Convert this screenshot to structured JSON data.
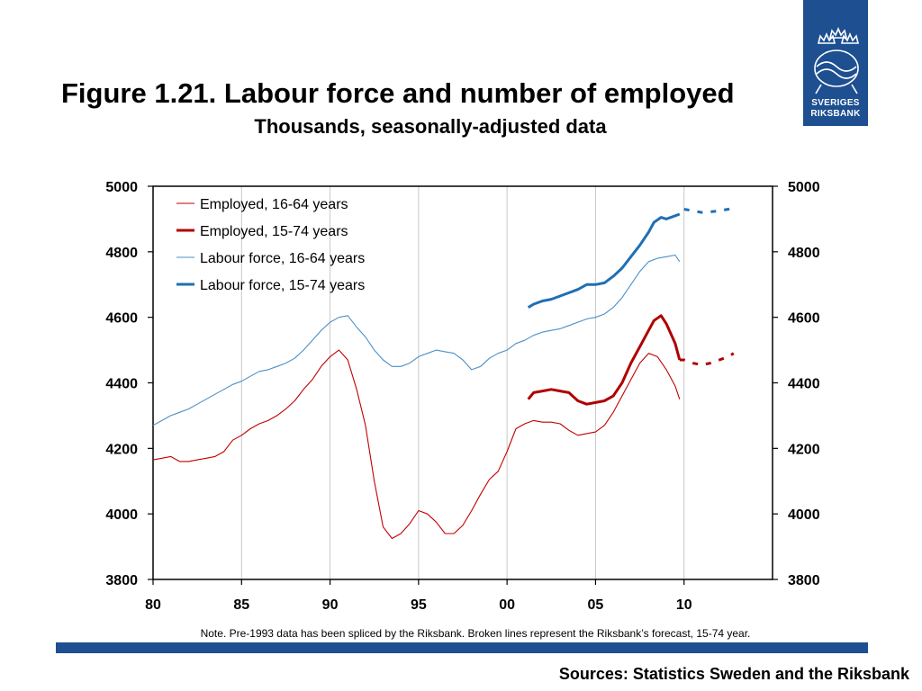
{
  "header": {
    "title": "Figure 1.21. Labour force and number of employed",
    "subtitle": "Thousands, seasonally-adjusted data"
  },
  "logo": {
    "line1": "SVERIGES",
    "line2": "RIKSBANK",
    "icon": "crown-crest-icon",
    "color": "#1d4f91"
  },
  "note": "Note. Pre-1993 data has been spliced by the Riksbank. Broken lines represent the Riksbank’s forecast, 15-74 year.",
  "footer": {
    "sources": "Sources: Statistics Sweden and the Riksbank",
    "bar_color": "#1d4f91"
  },
  "chart_data": {
    "type": "line",
    "title": "Figure 1.21. Labour force and number of employed",
    "subtitle": "Thousands, seasonally-adjusted data",
    "xlim": [
      1980,
      2015
    ],
    "ylim": [
      3800,
      5000
    ],
    "x_ticks": [
      1980,
      1985,
      1990,
      1995,
      2000,
      2005,
      2010
    ],
    "x_tick_labels": [
      "80",
      "85",
      "90",
      "95",
      "00",
      "05",
      "10"
    ],
    "y_ticks": [
      3800,
      4000,
      4200,
      4400,
      4600,
      4800,
      5000
    ],
    "y_tick_labels": [
      "3800",
      "4000",
      "4200",
      "4400",
      "4600",
      "4800",
      "5000"
    ],
    "y_axis_both_sides": true,
    "grid": "vertical",
    "legend_position": "top-left",
    "series": [
      {
        "name": "Employed, 16-64 years",
        "color": "#c00000",
        "width": "thin",
        "style": "solid",
        "x": [
          1980,
          1980.5,
          1981,
          1981.5,
          1982,
          1982.5,
          1983,
          1983.5,
          1984,
          1984.5,
          1985,
          1985.5,
          1986,
          1986.5,
          1987,
          1987.5,
          1988,
          1988.5,
          1989,
          1989.5,
          1990,
          1990.5,
          1991,
          1991.5,
          1992,
          1992.5,
          1993,
          1993.5,
          1994,
          1994.5,
          1995,
          1995.5,
          1996,
          1996.5,
          1997,
          1997.5,
          1998,
          1998.5,
          1999,
          1999.5,
          2000,
          2000.5,
          2001,
          2001.5,
          2002,
          2002.5,
          2003,
          2003.5,
          2004,
          2004.5,
          2005,
          2005.5,
          2006,
          2006.5,
          2007,
          2007.5,
          2008,
          2008.5,
          2009,
          2009.5,
          2009.75
        ],
        "y": [
          4165,
          4170,
          4175,
          4160,
          4160,
          4165,
          4170,
          4175,
          4190,
          4225,
          4240,
          4260,
          4275,
          4285,
          4300,
          4320,
          4345,
          4380,
          4410,
          4450,
          4480,
          4500,
          4470,
          4380,
          4270,
          4100,
          3960,
          3925,
          3940,
          3970,
          4010,
          4000,
          3975,
          3940,
          3940,
          3965,
          4010,
          4060,
          4105,
          4130,
          4190,
          4260,
          4275,
          4285,
          4280,
          4280,
          4275,
          4255,
          4240,
          4245,
          4250,
          4270,
          4310,
          4360,
          4410,
          4460,
          4490,
          4480,
          4440,
          4390,
          4350
        ]
      },
      {
        "name": "Employed, 15-74 years",
        "color": "#b00000",
        "width": "thick",
        "style": "solid",
        "x": [
          2001.2,
          2001.5,
          2002,
          2002.5,
          2003,
          2003.5,
          2004,
          2004.5,
          2005,
          2005.5,
          2006,
          2006.5,
          2007,
          2007.5,
          2008,
          2008.3,
          2008.7,
          2009,
          2009.5,
          2009.75
        ],
        "y": [
          4350,
          4370,
          4375,
          4380,
          4375,
          4370,
          4345,
          4335,
          4340,
          4345,
          4360,
          4400,
          4460,
          4510,
          4560,
          4590,
          4605,
          4580,
          4520,
          4470
        ],
        "forecast": {
          "x": [
            2009.75,
            2010,
            2010.5,
            2011,
            2011.5,
            2012,
            2012.5,
            2012.8
          ],
          "y": [
            4470,
            4470,
            4460,
            4455,
            4460,
            4470,
            4480,
            4490
          ]
        }
      },
      {
        "name": "Labour force, 16-64 years",
        "color": "#4a90c8",
        "width": "thin",
        "style": "solid",
        "x": [
          1980,
          1980.5,
          1981,
          1981.5,
          1982,
          1982.5,
          1983,
          1983.5,
          1984,
          1984.5,
          1985,
          1985.5,
          1986,
          1986.5,
          1987,
          1987.5,
          1988,
          1988.5,
          1989,
          1989.5,
          1990,
          1990.5,
          1991,
          1991.5,
          1992,
          1992.5,
          1993,
          1993.5,
          1994,
          1994.5,
          1995,
          1995.5,
          1996,
          1996.5,
          1997,
          1997.5,
          1998,
          1998.5,
          1999,
          1999.5,
          2000,
          2000.5,
          2001,
          2001.5,
          2002,
          2002.5,
          2003,
          2003.5,
          2004,
          2004.5,
          2005,
          2005.5,
          2006,
          2006.5,
          2007,
          2007.5,
          2008,
          2008.5,
          2009,
          2009.5,
          2009.75
        ],
        "y": [
          4270,
          4285,
          4300,
          4310,
          4320,
          4335,
          4350,
          4365,
          4380,
          4395,
          4405,
          4420,
          4435,
          4440,
          4450,
          4460,
          4475,
          4500,
          4530,
          4560,
          4585,
          4600,
          4605,
          4570,
          4540,
          4500,
          4470,
          4450,
          4450,
          4460,
          4480,
          4490,
          4500,
          4495,
          4490,
          4470,
          4440,
          4450,
          4475,
          4490,
          4500,
          4520,
          4530,
          4545,
          4555,
          4560,
          4565,
          4575,
          4585,
          4595,
          4600,
          4610,
          4630,
          4660,
          4700,
          4740,
          4770,
          4780,
          4785,
          4790,
          4770
        ]
      },
      {
        "name": "Labour force, 15-74 years",
        "color": "#1f6fb4",
        "width": "thick",
        "style": "solid",
        "x": [
          2001.2,
          2001.5,
          2002,
          2002.5,
          2003,
          2003.5,
          2004,
          2004.5,
          2005,
          2005.5,
          2006,
          2006.5,
          2007,
          2007.5,
          2008,
          2008.3,
          2008.7,
          2009,
          2009.5,
          2009.75
        ],
        "y": [
          4630,
          4640,
          4650,
          4655,
          4665,
          4675,
          4685,
          4700,
          4700,
          4705,
          4725,
          4750,
          4785,
          4820,
          4860,
          4890,
          4905,
          4900,
          4910,
          4915
        ],
        "forecast": {
          "x": [
            2010,
            2010.5,
            2011,
            2011.5,
            2012,
            2012.5,
            2012.8
          ],
          "y": [
            4930,
            4925,
            4920,
            4922,
            4925,
            4930,
            4935
          ]
        }
      }
    ]
  }
}
